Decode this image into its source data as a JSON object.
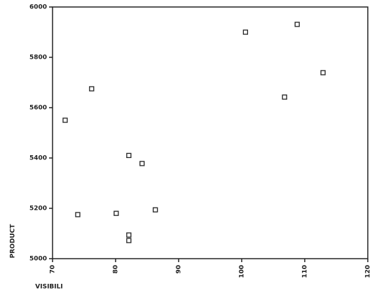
{
  "chart_data": {
    "type": "scatter",
    "x_label": "VISIBILI",
    "y_label": "PRODUCT",
    "series": [
      {
        "name": "PRODUCT",
        "color": "#222222",
        "x": [
          72,
          74,
          76.2,
          80.1,
          82.1,
          84.2,
          86.3,
          82.1,
          82.1,
          100.6,
          106.8,
          108.8,
          112.9
        ],
        "values": [
          5550,
          5175,
          5675,
          5180,
          5410,
          5378,
          5194,
          5094,
          5072,
          5900,
          5642,
          5931,
          5739
        ]
      }
    ],
    "xlim": [
      70,
      120
    ],
    "xticks": [
      70,
      80,
      90,
      100,
      110,
      120
    ],
    "ylim": [
      5000,
      6000
    ],
    "yticks": [
      5000,
      5200,
      5400,
      5600,
      5800,
      6000
    ],
    "grid": false
  }
}
